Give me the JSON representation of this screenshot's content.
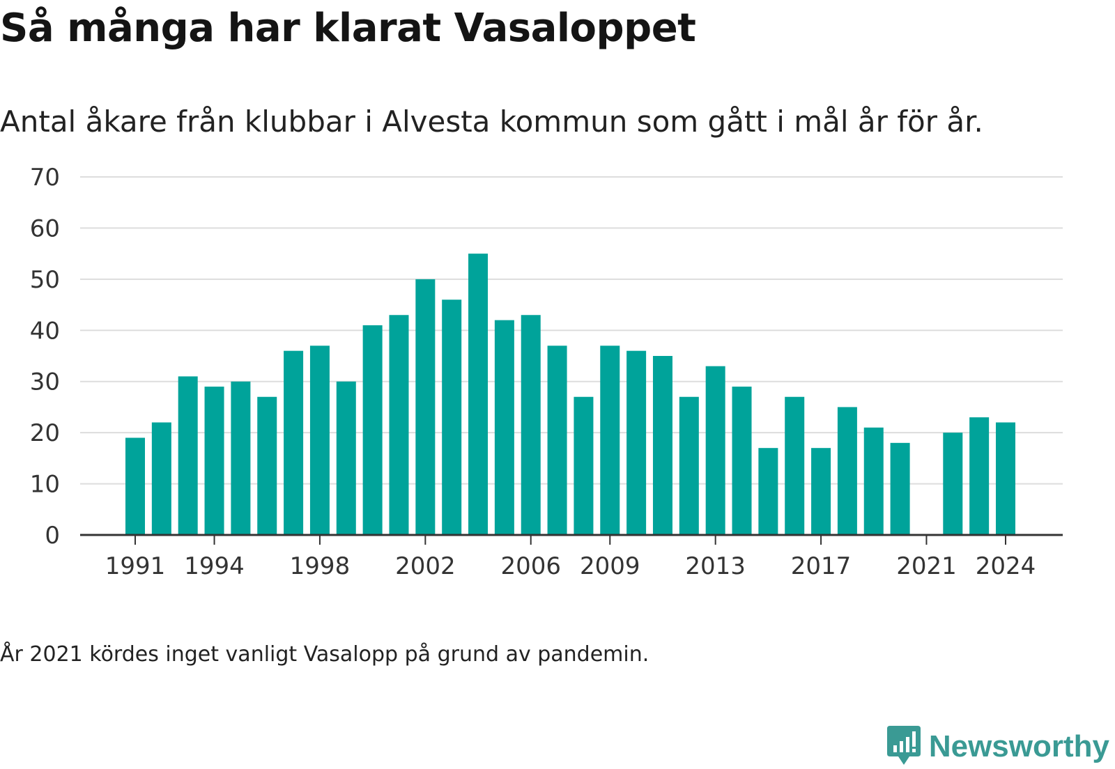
{
  "title": "Så många har klarat Vasaloppet",
  "subtitle": "Antal åkare från klubbar i Alvesta kommun som gått i mål år för år.",
  "footnote": "År 2021 kördes inget vanligt Vasalopp på grund av pandemin.",
  "brand": {
    "name": "Newsworthy",
    "icon": "newsworthy-chart-bubble-icon",
    "color": "#3a9a94"
  },
  "colors": {
    "bar": "#00a39a",
    "grid": "#dddddd",
    "axis": "#333333"
  },
  "chart_data": {
    "type": "bar",
    "x": [
      1991,
      1992,
      1993,
      1994,
      1995,
      1996,
      1997,
      1998,
      1999,
      2000,
      2001,
      2002,
      2003,
      2004,
      2005,
      2006,
      2007,
      2008,
      2009,
      2010,
      2011,
      2012,
      2013,
      2014,
      2015,
      2016,
      2017,
      2018,
      2019,
      2020,
      2021,
      2022,
      2023,
      2024
    ],
    "values": [
      19,
      22,
      31,
      29,
      30,
      27,
      36,
      37,
      30,
      41,
      43,
      50,
      46,
      55,
      42,
      43,
      37,
      27,
      37,
      36,
      35,
      27,
      33,
      29,
      17,
      27,
      17,
      25,
      21,
      18,
      null,
      20,
      23,
      22
    ],
    "x_tick_labels": [
      "1991",
      "1994",
      "1998",
      "2002",
      "2006",
      "2009",
      "2013",
      "2017",
      "2021",
      "2024"
    ],
    "y_ticks": [
      0,
      10,
      20,
      30,
      40,
      50,
      60,
      70
    ],
    "ylim": [
      0,
      70
    ],
    "xlabel": "",
    "ylabel": "",
    "grid": true,
    "legend": "none"
  }
}
